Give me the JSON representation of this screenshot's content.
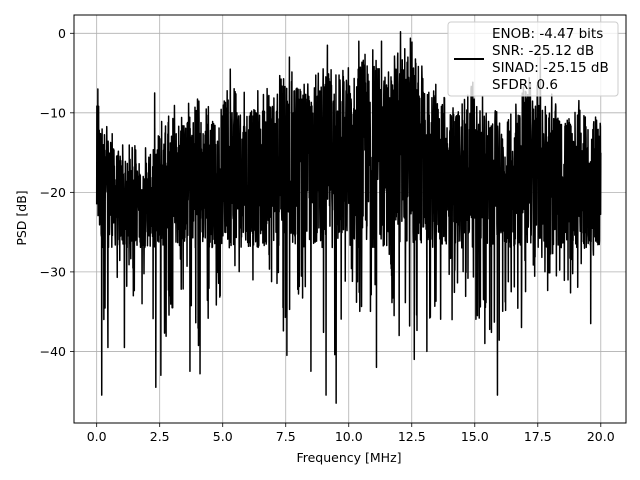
{
  "chart_data": {
    "type": "line",
    "title": "",
    "xlabel": "Frequency [MHz]",
    "ylabel": "PSD [dB]",
    "xlim": [
      -0.9,
      21.0
    ],
    "ylim": [
      -49,
      2.3
    ],
    "xticks": [
      0.0,
      2.5,
      5.0,
      7.5,
      10.0,
      12.5,
      15.0,
      17.5,
      20.0
    ],
    "xtick_labels": [
      "0.0",
      "2.5",
      "5.0",
      "7.5",
      "10.0",
      "12.5",
      "15.0",
      "17.5",
      "20.0"
    ],
    "yticks": [
      0,
      -10,
      -20,
      -30,
      -40
    ],
    "ytick_labels": [
      "0",
      "−10",
      "−20",
      "−30",
      "−40"
    ],
    "grid": true,
    "legend_position": "top-right",
    "legend_lines": [
      "ENOB: -4.47 bits",
      "SNR: -25.12 dB",
      "SINAD: -25.15 dB",
      "SFDR: 0.6"
    ],
    "series": [
      {
        "color": "#000000",
        "envelope": {
          "x": [
            0.0,
            0.5,
            1.0,
            1.5,
            2.0,
            2.5,
            3.0,
            3.5,
            4.0,
            4.5,
            5.0,
            5.5,
            6.0,
            6.5,
            7.0,
            7.5,
            8.0,
            8.5,
            9.0,
            9.5,
            10.0,
            10.5,
            11.0,
            11.5,
            12.0,
            12.5,
            13.0,
            13.5,
            14.0,
            14.5,
            15.0,
            15.5,
            16.0,
            16.5,
            17.0,
            17.5,
            18.0,
            18.5,
            19.0,
            19.5,
            20.0
          ],
          "upper": [
            -7,
            -12,
            -13,
            -14,
            -14,
            -11,
            -9,
            -9,
            -8,
            -9,
            -7,
            -6,
            -8,
            -7,
            -6,
            -4,
            -5,
            -6,
            -4,
            -3,
            -4,
            -1,
            -2,
            -3,
            -2,
            0,
            -5,
            -6,
            -8,
            -7,
            -6,
            -8,
            -10,
            -8,
            -5,
            -6,
            -7,
            -9,
            -7,
            -9,
            -8
          ],
          "lower": [
            -45,
            -35,
            -32,
            -34,
            -32,
            -44,
            -35,
            -32,
            -43,
            -35,
            -34,
            -31,
            -28,
            -30,
            -32,
            -40,
            -35,
            -30,
            -42,
            -46,
            -33,
            -37,
            -35,
            -32,
            -38,
            -41,
            -37,
            -38,
            -32,
            -35,
            -36,
            -38,
            -40,
            -35,
            -34,
            -30,
            -33,
            -31,
            -34,
            -30,
            -27
          ]
        },
        "spikes": [
          {
            "x": 0.05,
            "y": -35
          },
          {
            "x": 0.2,
            "y": -45.5
          },
          {
            "x": 0.45,
            "y": -39.5
          },
          {
            "x": 1.1,
            "y": -39.5
          },
          {
            "x": 1.8,
            "y": -34
          },
          {
            "x": 2.35,
            "y": -44.5
          },
          {
            "x": 2.55,
            "y": -43
          },
          {
            "x": 3.7,
            "y": -42.5
          },
          {
            "x": 4.1,
            "y": -42.8
          },
          {
            "x": 4.9,
            "y": -33
          },
          {
            "x": 6.2,
            "y": -31
          },
          {
            "x": 7.55,
            "y": -40.5
          },
          {
            "x": 8.5,
            "y": -42.5
          },
          {
            "x": 9.1,
            "y": -45.5
          },
          {
            "x": 9.5,
            "y": -46.5
          },
          {
            "x": 11.1,
            "y": -42
          },
          {
            "x": 12.0,
            "y": -38
          },
          {
            "x": 12.6,
            "y": -41
          },
          {
            "x": 13.1,
            "y": -40
          },
          {
            "x": 14.1,
            "y": -36
          },
          {
            "x": 15.4,
            "y": -39
          },
          {
            "x": 15.9,
            "y": -45.5
          },
          {
            "x": 16.85,
            "y": -37
          },
          {
            "x": 18.7,
            "y": -31
          },
          {
            "x": 19.6,
            "y": -36.5
          },
          {
            "x": 0.05,
            "y": -7
          },
          {
            "x": 2.3,
            "y": -7.5
          },
          {
            "x": 5.3,
            "y": -4.5
          },
          {
            "x": 7.65,
            "y": -3
          },
          {
            "x": 9.15,
            "y": -1.5
          },
          {
            "x": 10.4,
            "y": -1
          },
          {
            "x": 11.3,
            "y": -1
          },
          {
            "x": 12.05,
            "y": 0.2
          },
          {
            "x": 12.35,
            "y": -3
          },
          {
            "x": 17.6,
            "y": -3
          }
        ]
      }
    ]
  }
}
